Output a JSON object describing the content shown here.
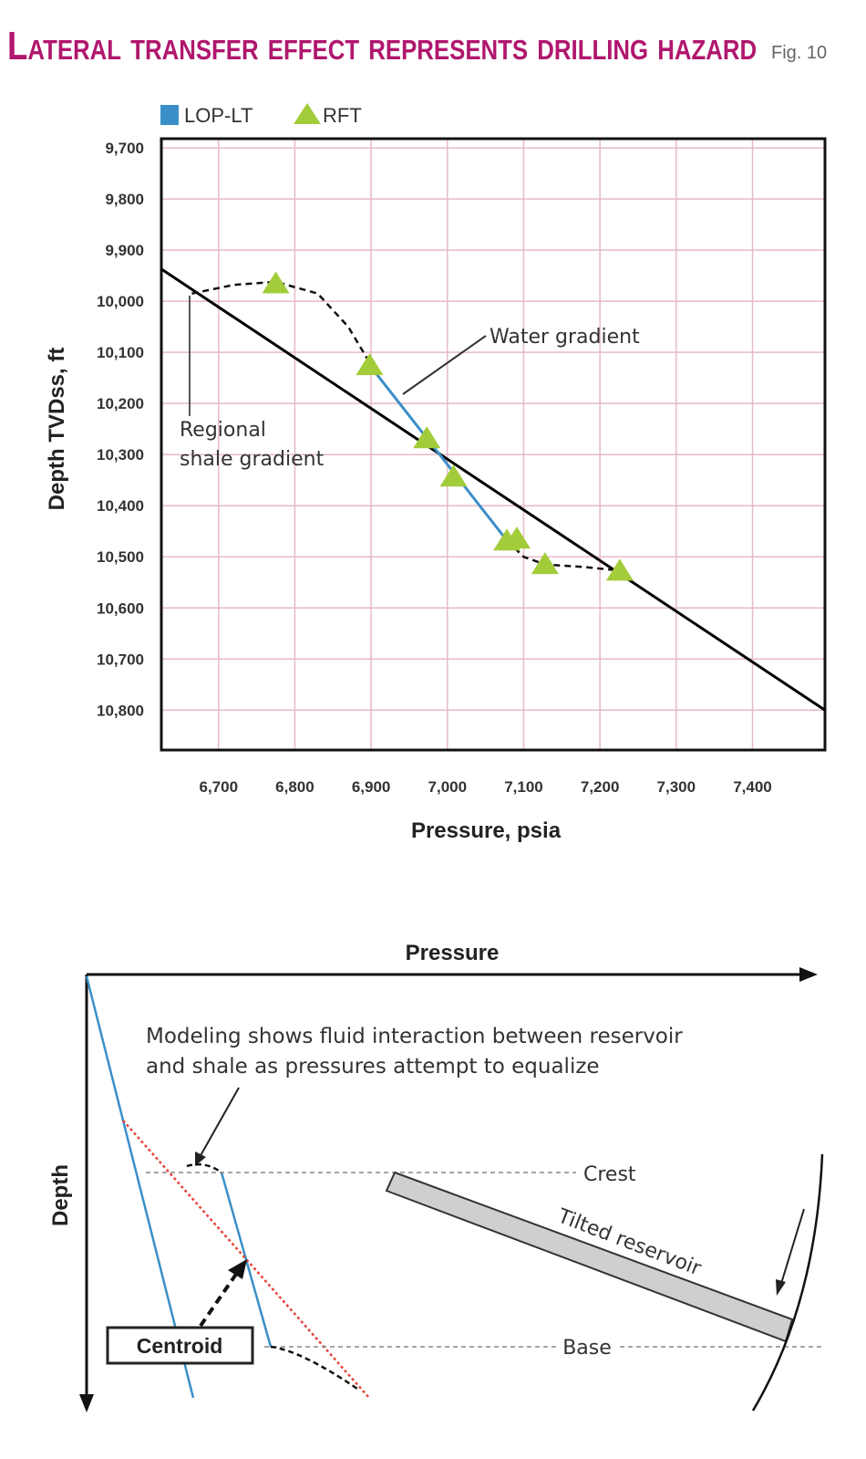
{
  "title": {
    "text": "Lateral transfer effect represents drilling hazard",
    "fig": "Fig. 10",
    "color": "#b0176e"
  },
  "chart_data": {
    "type": "scatter",
    "xlabel": "Pressure, psia",
    "ylabel": "Depth TVDss, ft",
    "xlim": [
      6625,
      7495
    ],
    "ylim": [
      9682,
      10878
    ],
    "y_inverted": true,
    "grid": true,
    "legend_position": "top-left",
    "xticks": [
      "6,700",
      "6,800",
      "6,900",
      "7,000",
      "7,100",
      "7,200",
      "7,300",
      "7,400"
    ],
    "xtick_values": [
      6700,
      6800,
      6900,
      7000,
      7100,
      7200,
      7300,
      7400
    ],
    "yticks": [
      "9,700",
      "9,800",
      "9,900",
      "10,000",
      "10,100",
      "10,200",
      "10,300",
      "10,400",
      "10,500",
      "10,600",
      "10,700",
      "10,800"
    ],
    "ytick_values": [
      9700,
      9800,
      9900,
      10000,
      10100,
      10200,
      10300,
      10400,
      10500,
      10600,
      10700,
      10800
    ],
    "series": [
      {
        "name": "LOP-LT",
        "kind": "line",
        "color": "#3a8fc8",
        "points": [
          [
            6898,
            10125
          ],
          [
            7078,
            10468
          ]
        ]
      },
      {
        "name": "RFT",
        "kind": "triangle-marker",
        "color": "#a2cc3a",
        "points": [
          [
            6775,
            9965
          ],
          [
            6898,
            10125
          ],
          [
            6973,
            10268
          ],
          [
            7008,
            10343
          ],
          [
            7078,
            10468
          ],
          [
            7091,
            10464
          ],
          [
            7128,
            10514
          ],
          [
            7226,
            10527
          ]
        ]
      }
    ],
    "reference_lines": [
      {
        "label": "Regional shale gradient",
        "color": "#000000",
        "points": [
          [
            6625,
            9937
          ],
          [
            7495,
            10800
          ]
        ]
      }
    ],
    "dashed_curves": [
      [
        [
          6665,
          9985
        ],
        [
          6720,
          9968
        ],
        [
          6775,
          9962
        ],
        [
          6830,
          9985
        ],
        [
          6870,
          10050
        ],
        [
          6898,
          10120
        ]
      ],
      [
        [
          7078,
          10468
        ],
        [
          7100,
          10500
        ],
        [
          7128,
          10515
        ],
        [
          7180,
          10520
        ],
        [
          7226,
          10527
        ]
      ]
    ],
    "annotations": [
      "Water gradient",
      "Regional",
      "shale gradient"
    ]
  },
  "diagram": {
    "x_axis": "Pressure",
    "y_axis": "Depth",
    "note_line1": "Modeling shows fluid interaction between reservoir",
    "note_line2": "and shale as pressures attempt to equalize",
    "crest": "Crest",
    "base": "Base",
    "reservoir": "Tilted reservoir",
    "centroid": "Centroid",
    "colors": {
      "blue": "#3a8fc8",
      "red": "#e8433a",
      "reservoir_fill": "#cfcfcf"
    }
  }
}
